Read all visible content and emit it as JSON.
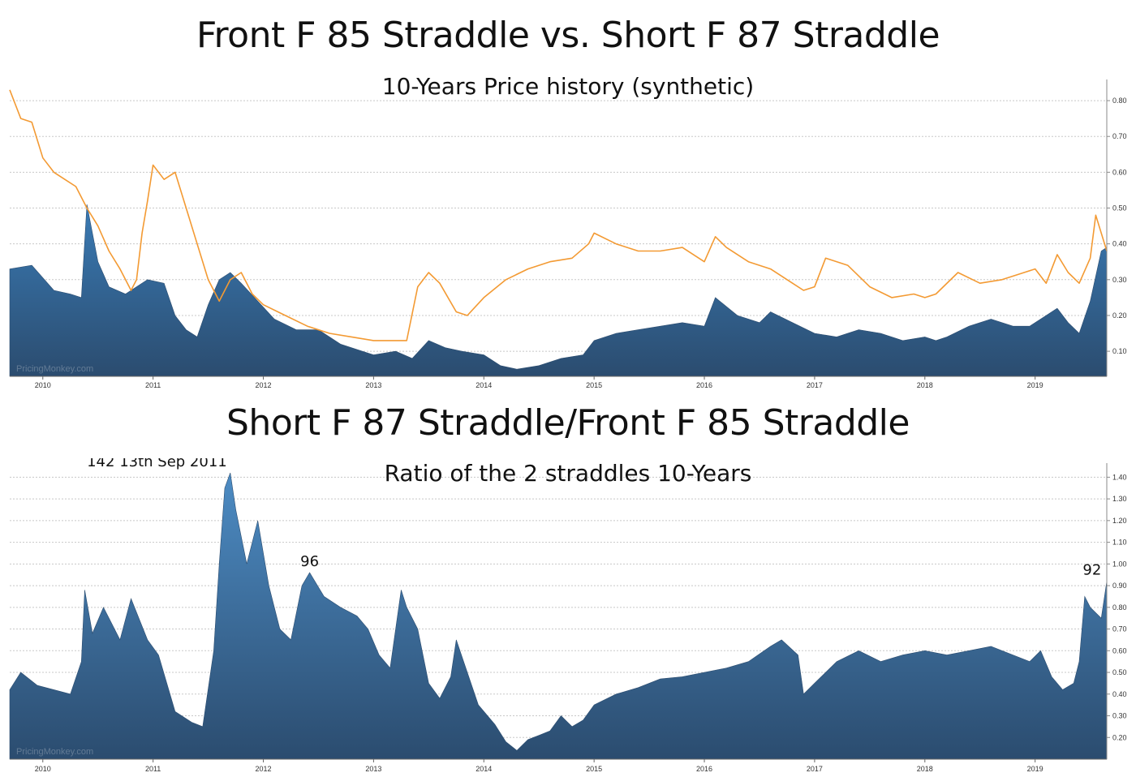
{
  "headings": {
    "chart1_title": "Front F 85 Straddle vs. Short F 87 Straddle",
    "chart2_title": "Short F 87 Straddle/Front F 85 Straddle"
  },
  "watermark": "PricingMonkey.com",
  "colors": {
    "area_top": "#3a7bb5",
    "area_bottom": "#2b4c6f",
    "line": "#f39a33"
  },
  "chart_data": [
    {
      "type": "area",
      "subtitle": "10-Years Price history (synthetic)",
      "x_ticks": [
        "2010",
        "2011",
        "2012",
        "2013",
        "2014",
        "2015",
        "2016",
        "2017",
        "2018",
        "2019"
      ],
      "xlim": [
        2009.7,
        2019.65
      ],
      "ylim": [
        0.03,
        0.85
      ],
      "y_ticks": [
        "0.10",
        "0.20",
        "0.30",
        "0.40",
        "0.50",
        "0.60",
        "0.70",
        "0.80"
      ],
      "grid": true,
      "series": [
        {
          "style": "area",
          "x": [
            2009.7,
            2009.9,
            2010.1,
            2010.25,
            2010.35,
            2010.4,
            2010.5,
            2010.6,
            2010.75,
            2010.85,
            2010.95,
            2011.1,
            2011.2,
            2011.3,
            2011.4,
            2011.5,
            2011.6,
            2011.7,
            2011.8,
            2011.95,
            2012.1,
            2012.3,
            2012.5,
            2012.7,
            2012.9,
            2013.0,
            2013.2,
            2013.35,
            2013.5,
            2013.65,
            2013.8,
            2014.0,
            2014.15,
            2014.3,
            2014.5,
            2014.7,
            2014.9,
            2015.0,
            2015.2,
            2015.4,
            2015.6,
            2015.8,
            2016.0,
            2016.1,
            2016.3,
            2016.5,
            2016.6,
            2016.8,
            2017.0,
            2017.2,
            2017.4,
            2017.6,
            2017.8,
            2018.0,
            2018.1,
            2018.2,
            2018.4,
            2018.6,
            2018.8,
            2018.95,
            2019.1,
            2019.2,
            2019.3,
            2019.4,
            2019.5,
            2019.6,
            2019.65
          ],
          "values": [
            0.33,
            0.34,
            0.27,
            0.26,
            0.25,
            0.51,
            0.35,
            0.28,
            0.26,
            0.28,
            0.3,
            0.29,
            0.2,
            0.16,
            0.14,
            0.23,
            0.3,
            0.32,
            0.29,
            0.24,
            0.19,
            0.16,
            0.16,
            0.12,
            0.1,
            0.09,
            0.1,
            0.08,
            0.13,
            0.11,
            0.1,
            0.09,
            0.06,
            0.05,
            0.06,
            0.08,
            0.09,
            0.13,
            0.15,
            0.16,
            0.17,
            0.18,
            0.17,
            0.25,
            0.2,
            0.18,
            0.21,
            0.18,
            0.15,
            0.14,
            0.16,
            0.15,
            0.13,
            0.14,
            0.13,
            0.14,
            0.17,
            0.19,
            0.17,
            0.17,
            0.2,
            0.22,
            0.18,
            0.15,
            0.24,
            0.38,
            0.39
          ]
        },
        {
          "style": "line",
          "x": [
            2009.7,
            2009.8,
            2009.9,
            2010.0,
            2010.1,
            2010.2,
            2010.3,
            2010.4,
            2010.5,
            2010.6,
            2010.7,
            2010.8,
            2010.85,
            2010.9,
            2010.95,
            2011.0,
            2011.1,
            2011.2,
            2011.3,
            2011.4,
            2011.5,
            2011.6,
            2011.7,
            2011.8,
            2011.9,
            2012.0,
            2012.2,
            2012.4,
            2012.6,
            2012.8,
            2013.0,
            2013.2,
            2013.3,
            2013.4,
            2013.5,
            2013.6,
            2013.75,
            2013.85,
            2014.0,
            2014.2,
            2014.4,
            2014.6,
            2014.8,
            2014.95,
            2015.0,
            2015.2,
            2015.4,
            2015.6,
            2015.8,
            2016.0,
            2016.1,
            2016.2,
            2016.4,
            2016.6,
            2016.8,
            2016.9,
            2017.0,
            2017.1,
            2017.3,
            2017.5,
            2017.7,
            2017.9,
            2018.0,
            2018.1,
            2018.3,
            2018.5,
            2018.7,
            2018.9,
            2019.0,
            2019.1,
            2019.2,
            2019.3,
            2019.4,
            2019.5,
            2019.55,
            2019.65
          ],
          "values": [
            0.83,
            0.75,
            0.74,
            0.64,
            0.6,
            0.58,
            0.56,
            0.5,
            0.45,
            0.38,
            0.33,
            0.27,
            0.3,
            0.43,
            0.52,
            0.62,
            0.58,
            0.6,
            0.5,
            0.4,
            0.3,
            0.24,
            0.3,
            0.32,
            0.26,
            0.23,
            0.2,
            0.17,
            0.15,
            0.14,
            0.13,
            0.13,
            0.13,
            0.28,
            0.32,
            0.29,
            0.21,
            0.2,
            0.25,
            0.3,
            0.33,
            0.35,
            0.36,
            0.4,
            0.43,
            0.4,
            0.38,
            0.38,
            0.39,
            0.35,
            0.42,
            0.39,
            0.35,
            0.33,
            0.29,
            0.27,
            0.28,
            0.36,
            0.34,
            0.28,
            0.25,
            0.26,
            0.25,
            0.26,
            0.32,
            0.29,
            0.3,
            0.32,
            0.33,
            0.29,
            0.37,
            0.32,
            0.29,
            0.36,
            0.48,
            0.38
          ]
        }
      ]
    },
    {
      "type": "area",
      "subtitle": "Ratio of the 2 straddles 10-Years",
      "x_ticks": [
        "2010",
        "2011",
        "2012",
        "2013",
        "2014",
        "2015",
        "2016",
        "2017",
        "2018",
        "2019"
      ],
      "xlim": [
        2009.7,
        2019.65
      ],
      "ylim": [
        0.1,
        1.45
      ],
      "y_ticks": [
        "0.20",
        "0.30",
        "0.40",
        "0.50",
        "0.60",
        "0.70",
        "0.80",
        "0.90",
        "1.00",
        "1.10",
        "1.20",
        "1.30",
        "1.40"
      ],
      "grid": true,
      "annotations": [
        {
          "text": "142 13th Sep 2011",
          "x": 2011.7,
          "y": 1.42
        },
        {
          "text": "96",
          "x": 2012.42,
          "y": 0.96
        },
        {
          "text": "92",
          "x": 2019.63,
          "y": 0.92
        }
      ],
      "series": [
        {
          "style": "area",
          "x": [
            2009.7,
            2009.8,
            2009.95,
            2010.1,
            2010.25,
            2010.35,
            2010.38,
            2010.45,
            2010.55,
            2010.7,
            2010.8,
            2010.95,
            2011.05,
            2011.2,
            2011.35,
            2011.45,
            2011.55,
            2011.6,
            2011.65,
            2011.7,
            2011.75,
            2011.85,
            2011.95,
            2012.05,
            2012.15,
            2012.25,
            2012.35,
            2012.42,
            2012.55,
            2012.7,
            2012.85,
            2012.95,
            2013.05,
            2013.15,
            2013.25,
            2013.3,
            2013.4,
            2013.5,
            2013.6,
            2013.7,
            2013.75,
            2013.85,
            2013.95,
            2014.1,
            2014.2,
            2014.3,
            2014.4,
            2014.5,
            2014.6,
            2014.7,
            2014.8,
            2014.9,
            2015.0,
            2015.2,
            2015.4,
            2015.6,
            2015.8,
            2016.0,
            2016.2,
            2016.4,
            2016.6,
            2016.7,
            2016.85,
            2016.9,
            2017.0,
            2017.2,
            2017.4,
            2017.6,
            2017.8,
            2018.0,
            2018.2,
            2018.4,
            2018.6,
            2018.8,
            2018.95,
            2019.05,
            2019.15,
            2019.25,
            2019.35,
            2019.4,
            2019.45,
            2019.5,
            2019.6,
            2019.65
          ],
          "values": [
            0.42,
            0.5,
            0.44,
            0.42,
            0.4,
            0.55,
            0.88,
            0.68,
            0.8,
            0.65,
            0.84,
            0.65,
            0.58,
            0.32,
            0.27,
            0.25,
            0.6,
            1.0,
            1.35,
            1.42,
            1.25,
            1.0,
            1.2,
            0.9,
            0.7,
            0.65,
            0.9,
            0.96,
            0.85,
            0.8,
            0.76,
            0.7,
            0.58,
            0.52,
            0.88,
            0.8,
            0.7,
            0.45,
            0.38,
            0.48,
            0.65,
            0.5,
            0.35,
            0.26,
            0.18,
            0.14,
            0.19,
            0.21,
            0.23,
            0.3,
            0.25,
            0.28,
            0.35,
            0.4,
            0.43,
            0.47,
            0.48,
            0.5,
            0.52,
            0.55,
            0.62,
            0.65,
            0.58,
            0.4,
            0.45,
            0.55,
            0.6,
            0.55,
            0.58,
            0.6,
            0.58,
            0.6,
            0.62,
            0.58,
            0.55,
            0.6,
            0.48,
            0.42,
            0.45,
            0.55,
            0.85,
            0.8,
            0.75,
            0.92
          ]
        }
      ]
    }
  ]
}
